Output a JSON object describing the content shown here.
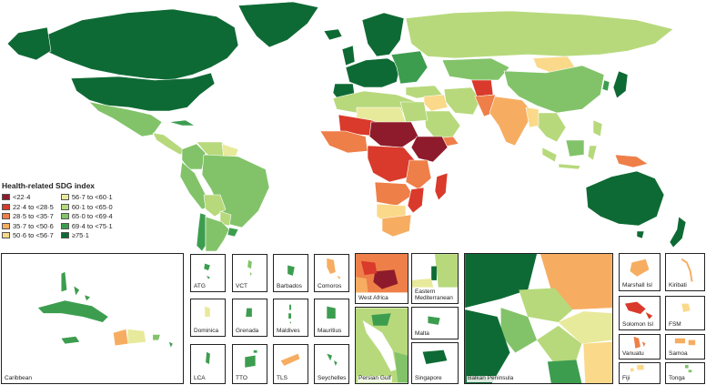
{
  "colors": {
    "c1": "#8e1b2b",
    "c2": "#d93a2b",
    "c3": "#ee7f48",
    "c4": "#f6ad61",
    "c5": "#fad98a",
    "c6": "#e8ea9b",
    "c7": "#b7d97c",
    "c8": "#82c36a",
    "c9": "#3c9d4f",
    "c10": "#0e6a34",
    "ocean": "#ffffff",
    "border": "#ffffff"
  },
  "legend": {
    "title": "Health-related SDG index",
    "items": [
      {
        "label": "<22·4",
        "color": "#8e1b2b"
      },
      {
        "label": "22·4 to <28·5",
        "color": "#d93a2b"
      },
      {
        "label": "28·5 to <35·7",
        "color": "#ee7f48"
      },
      {
        "label": "35·7 to <50·6",
        "color": "#f6ad61"
      },
      {
        "label": "50·6 to <56·7",
        "color": "#fad98a"
      },
      {
        "label": "56·7 to <60·1",
        "color": "#e8ea9b"
      },
      {
        "label": "60·1 to <65·0",
        "color": "#b7d97c"
      },
      {
        "label": "65·0 to <69·4",
        "color": "#82c36a"
      },
      {
        "label": "69·4 to <75·1",
        "color": "#3c9d4f"
      },
      {
        "label": "≥75·1",
        "color": "#0e6a34"
      }
    ]
  },
  "insets": {
    "caribbean": "Caribbean",
    "atg": "ATG",
    "vct": "VCT",
    "barbados": "Barbados",
    "comoros": "Comoros",
    "dominica": "Dominica",
    "grenada": "Grenada",
    "maldives": "Maldives",
    "mauritius": "Mauritius",
    "lca": "LCA",
    "tto": "TTO",
    "tls": "TLS",
    "seychelles": "Seychelles",
    "west_africa": "West Africa",
    "eastern_med": "Eastern Mediterranean",
    "malta": "Malta",
    "persian_gulf": "Persian Gulf",
    "singapore": "Singapore",
    "balkan": "Balkan Peninsula",
    "marshall": "Marshall Isl",
    "kiribati": "Kiribati",
    "solomon": "Solomon Isl",
    "fsm": "FSM",
    "vanuatu": "Vanuatu",
    "samoa": "Samoa",
    "fiji": "Fiji",
    "tonga": "Tonga"
  }
}
